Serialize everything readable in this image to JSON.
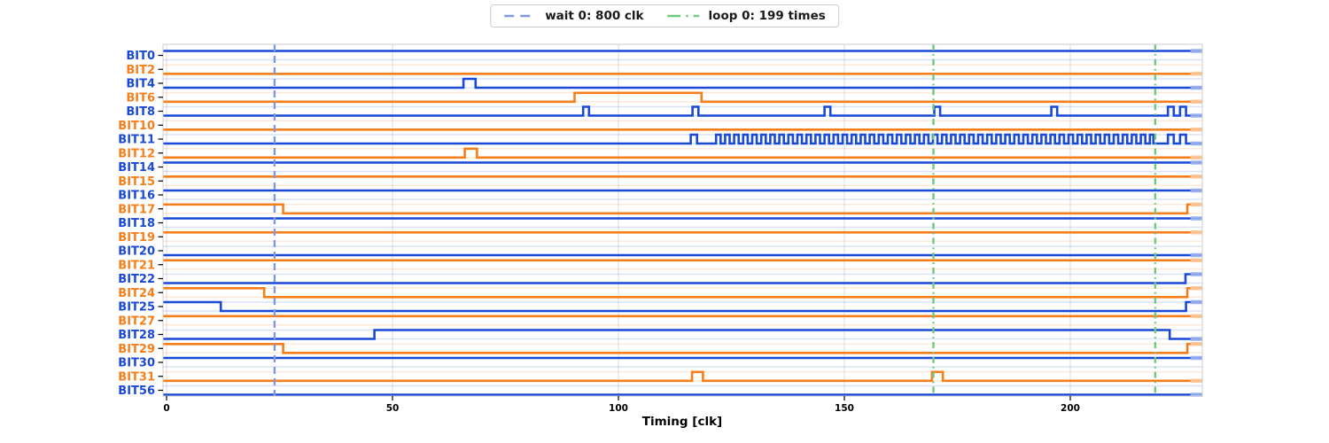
{
  "legend": {
    "items": [
      {
        "label": "wait 0: 800 clk",
        "color": "#7e9ae2",
        "dash": "dashed"
      },
      {
        "label": "loop 0: 199 times",
        "color": "#6fc97f",
        "dash": "dashdot"
      }
    ]
  },
  "xaxis": {
    "title": "Timing [clk]",
    "ticks": [
      "0",
      "50",
      "100",
      "150",
      "200"
    ],
    "tick_values": [
      0,
      50,
      100,
      150,
      200
    ],
    "min": -0.8,
    "max": 229.3
  },
  "colors": {
    "blue": "#1949d6",
    "orange": "#f67f1b",
    "grid": "#dcdcdc",
    "spine": "#cccccc",
    "tick": "#000000",
    "wait_line": "#7e9ae2",
    "loop_line": "#6fc97f"
  },
  "markers": {
    "wait_lines": [
      {
        "x": 23.9,
        "label": "wait 0: 800 clk"
      }
    ],
    "loop_lines": [
      {
        "x": 169.7,
        "label": "loop 0: 199 times"
      },
      {
        "x": 218.8,
        "label": "loop 0: 199 times"
      }
    ]
  },
  "chart_data": {
    "type": "digital-timing",
    "xlabel": "Timing [clk]",
    "x_range": [
      -0.8,
      229.3
    ],
    "grid": "vertical-at-x-ticks",
    "legend_position": "top-center",
    "signals": [
      {
        "name": "BIT0",
        "color": "blue",
        "init": 1
      },
      {
        "name": "BIT2",
        "color": "orange",
        "init": 0
      },
      {
        "name": "BIT4",
        "color": "blue",
        "init": 0,
        "pulses": [
          [
            65.7,
            68.4
          ]
        ]
      },
      {
        "name": "BIT6",
        "color": "orange",
        "init": 0,
        "pulses": [
          [
            90.3,
            118.4
          ]
        ]
      },
      {
        "name": "BIT8",
        "color": "blue",
        "init": 0,
        "pulses": [
          [
            92.2,
            93.5
          ],
          [
            116.4,
            117.7
          ],
          [
            145.6,
            146.9
          ],
          [
            169.9,
            171.2
          ],
          [
            195.8,
            197.1
          ],
          [
            221.6,
            222.9
          ],
          [
            224.3,
            225.6
          ]
        ]
      },
      {
        "name": "BIT10",
        "color": "orange",
        "init": 0
      },
      {
        "name": "BIT11",
        "color": "blue",
        "init": 0,
        "pulses": [
          [
            116.0,
            117.4
          ],
          [
            221.6,
            222.9
          ],
          [
            224.3,
            225.6
          ]
        ],
        "osc": {
          "start": 121.6,
          "end": 218.4,
          "period": 2
        }
      },
      {
        "name": "BIT12",
        "color": "orange",
        "init": 0,
        "pulses": [
          [
            66.0,
            68.7
          ]
        ]
      },
      {
        "name": "BIT14",
        "color": "blue",
        "init": 1
      },
      {
        "name": "BIT15",
        "color": "orange",
        "init": 1
      },
      {
        "name": "BIT16",
        "color": "blue",
        "init": 1
      },
      {
        "name": "BIT17",
        "color": "orange",
        "init": 1,
        "events": [
          [
            25.8,
            0
          ],
          [
            225.9,
            1
          ]
        ]
      },
      {
        "name": "BIT18",
        "color": "blue",
        "init": 1
      },
      {
        "name": "BIT19",
        "color": "orange",
        "init": 1
      },
      {
        "name": "BIT20",
        "color": "blue",
        "init": 0
      },
      {
        "name": "BIT21",
        "color": "orange",
        "init": 1
      },
      {
        "name": "BIT22",
        "color": "blue",
        "init": 0,
        "events": [
          [
            225.5,
            1
          ]
        ]
      },
      {
        "name": "BIT24",
        "color": "orange",
        "init": 1,
        "events": [
          [
            21.6,
            0
          ],
          [
            225.9,
            1
          ]
        ]
      },
      {
        "name": "BIT25",
        "color": "blue",
        "init": 1,
        "events": [
          [
            12.0,
            0
          ],
          [
            225.6,
            1
          ]
        ]
      },
      {
        "name": "BIT27",
        "color": "orange",
        "init": 1
      },
      {
        "name": "BIT28",
        "color": "blue",
        "init": 0,
        "events": [
          [
            46.0,
            1
          ],
          [
            222.0,
            0
          ]
        ]
      },
      {
        "name": "BIT29",
        "color": "orange",
        "init": 1,
        "events": [
          [
            25.8,
            0
          ],
          [
            225.9,
            1
          ]
        ]
      },
      {
        "name": "BIT30",
        "color": "blue",
        "init": 1
      },
      {
        "name": "BIT31",
        "color": "orange",
        "init": 0,
        "pulses": [
          [
            116.3,
            118.7
          ],
          [
            169.4,
            171.8
          ]
        ]
      },
      {
        "name": "BIT56",
        "color": "blue",
        "init": 0
      }
    ]
  }
}
